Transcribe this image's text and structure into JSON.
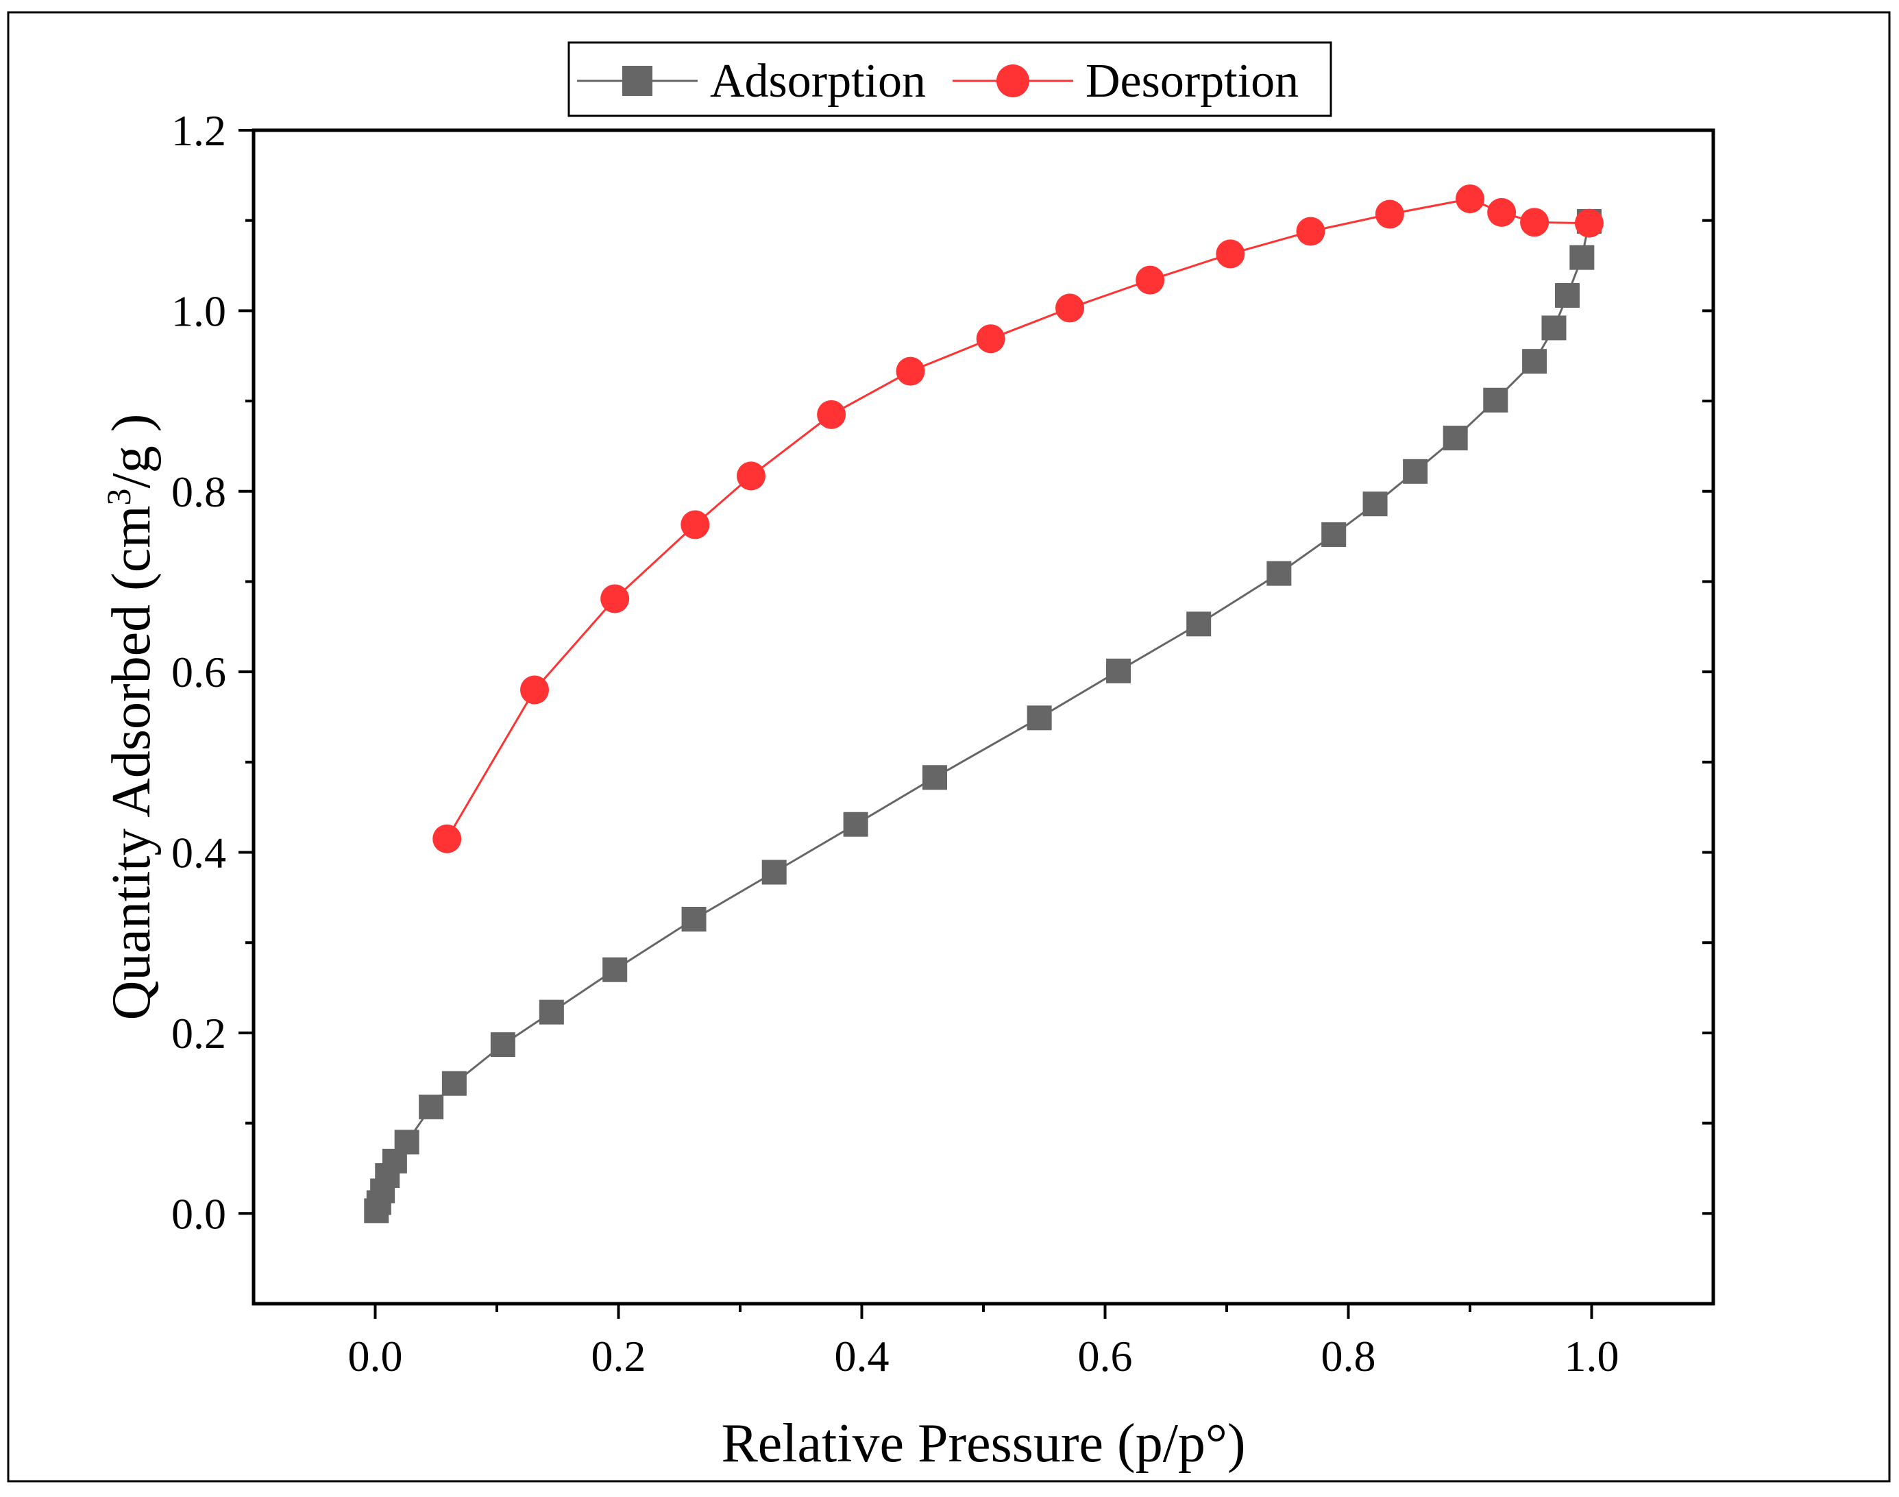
{
  "chart_data": {
    "type": "line",
    "title": "",
    "xlabel": "Relative Pressure (p/p°)",
    "ylabel_main": "Quantity Adsorbed (cm",
    "ylabel_sup": "3",
    "ylabel_tail": "/g  )",
    "xlim": [
      -0.1,
      1.1
    ],
    "ylim": [
      -0.1,
      1.2
    ],
    "x_ticks": [
      0.0,
      0.2,
      0.4,
      0.6,
      0.8,
      1.0
    ],
    "x_tick_labels": [
      "0.0",
      "0.2",
      "0.4",
      "0.6",
      "0.8",
      "1.0"
    ],
    "y_ticks": [
      0.0,
      0.2,
      0.4,
      0.6,
      0.8,
      1.0,
      1.2
    ],
    "y_tick_labels": [
      "0.0",
      "0.2",
      "0.4",
      "0.6",
      "0.8",
      "1.0",
      "1.2"
    ],
    "legend": {
      "placement": "top-center-outside",
      "entries": [
        "Adsorption",
        "Desorption"
      ]
    },
    "series": [
      {
        "name": "Adsorption",
        "marker": "square",
        "color": "#666666",
        "line_color": "#666666",
        "x": [
          0.001,
          0.003,
          0.006,
          0.01,
          0.016,
          0.026,
          0.046,
          0.065,
          0.105,
          0.145,
          0.197,
          0.262,
          0.328,
          0.395,
          0.46,
          0.546,
          0.611,
          0.677,
          0.743,
          0.788,
          0.822,
          0.855,
          0.888,
          0.921,
          0.953,
          0.969,
          0.98,
          0.992,
          0.998
        ],
        "y": [
          0.003,
          0.012,
          0.025,
          0.042,
          0.058,
          0.079,
          0.118,
          0.144,
          0.187,
          0.223,
          0.27,
          0.326,
          0.378,
          0.431,
          0.483,
          0.549,
          0.601,
          0.653,
          0.709,
          0.752,
          0.786,
          0.822,
          0.859,
          0.901,
          0.944,
          0.981,
          1.017,
          1.059,
          1.099
        ]
      },
      {
        "name": "Desorption",
        "marker": "circle",
        "color": "#ff3333",
        "line_color": "#ff3333",
        "x": [
          0.059,
          0.131,
          0.197,
          0.263,
          0.309,
          0.375,
          0.44,
          0.506,
          0.571,
          0.637,
          0.703,
          0.769,
          0.834,
          0.9,
          0.926,
          0.953,
          0.998
        ],
        "y": [
          0.415,
          0.58,
          0.681,
          0.763,
          0.817,
          0.885,
          0.933,
          0.969,
          1.003,
          1.034,
          1.063,
          1.088,
          1.107,
          1.124,
          1.109,
          1.098,
          1.097
        ]
      }
    ]
  }
}
